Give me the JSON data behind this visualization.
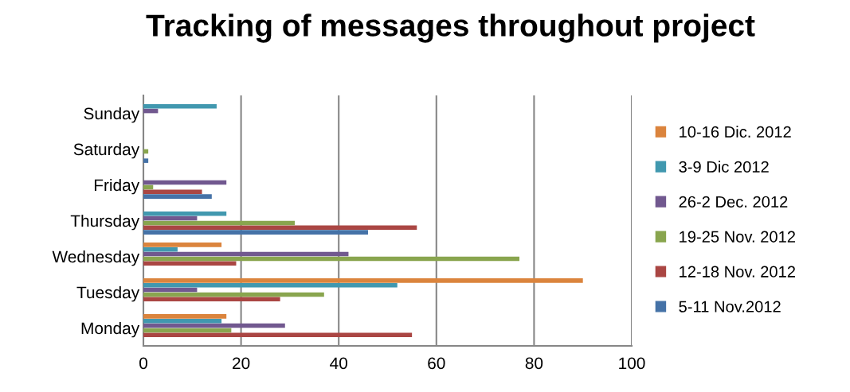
{
  "chart_data": {
    "type": "bar",
    "orientation": "horizontal",
    "title": "Tracking of messages throughout project",
    "categories": [
      "Sunday",
      "Saturday",
      "Friday",
      "Thursday",
      "Wednesday",
      "Tuesday",
      "Monday"
    ],
    "series": [
      {
        "name": "5-11 Nov.2012",
        "color": "#4572a7",
        "values": [
          0,
          1,
          14,
          46,
          0,
          0,
          0
        ]
      },
      {
        "name": "12-18 Nov. 2012",
        "color": "#aa4643",
        "values": [
          0,
          0,
          12,
          56,
          19,
          28,
          55
        ]
      },
      {
        "name": "19-25 Nov. 2012",
        "color": "#89a54e",
        "values": [
          0,
          1,
          2,
          31,
          77,
          37,
          18
        ]
      },
      {
        "name": "26-2 Dec. 2012",
        "color": "#71588f",
        "values": [
          3,
          0,
          17,
          11,
          42,
          11,
          29
        ]
      },
      {
        "name": "3-9 Dic 2012",
        "color": "#4198af",
        "values": [
          15,
          0,
          0,
          17,
          7,
          52,
          16
        ]
      },
      {
        "name": "10-16 Dic. 2012",
        "color": "#db843d",
        "values": [
          0,
          0,
          0,
          0,
          16,
          90,
          17
        ]
      }
    ],
    "xlim": [
      0,
      100
    ],
    "xticks": [
      0,
      20,
      40,
      60,
      80,
      100
    ],
    "grid": "x",
    "legend": "right"
  }
}
